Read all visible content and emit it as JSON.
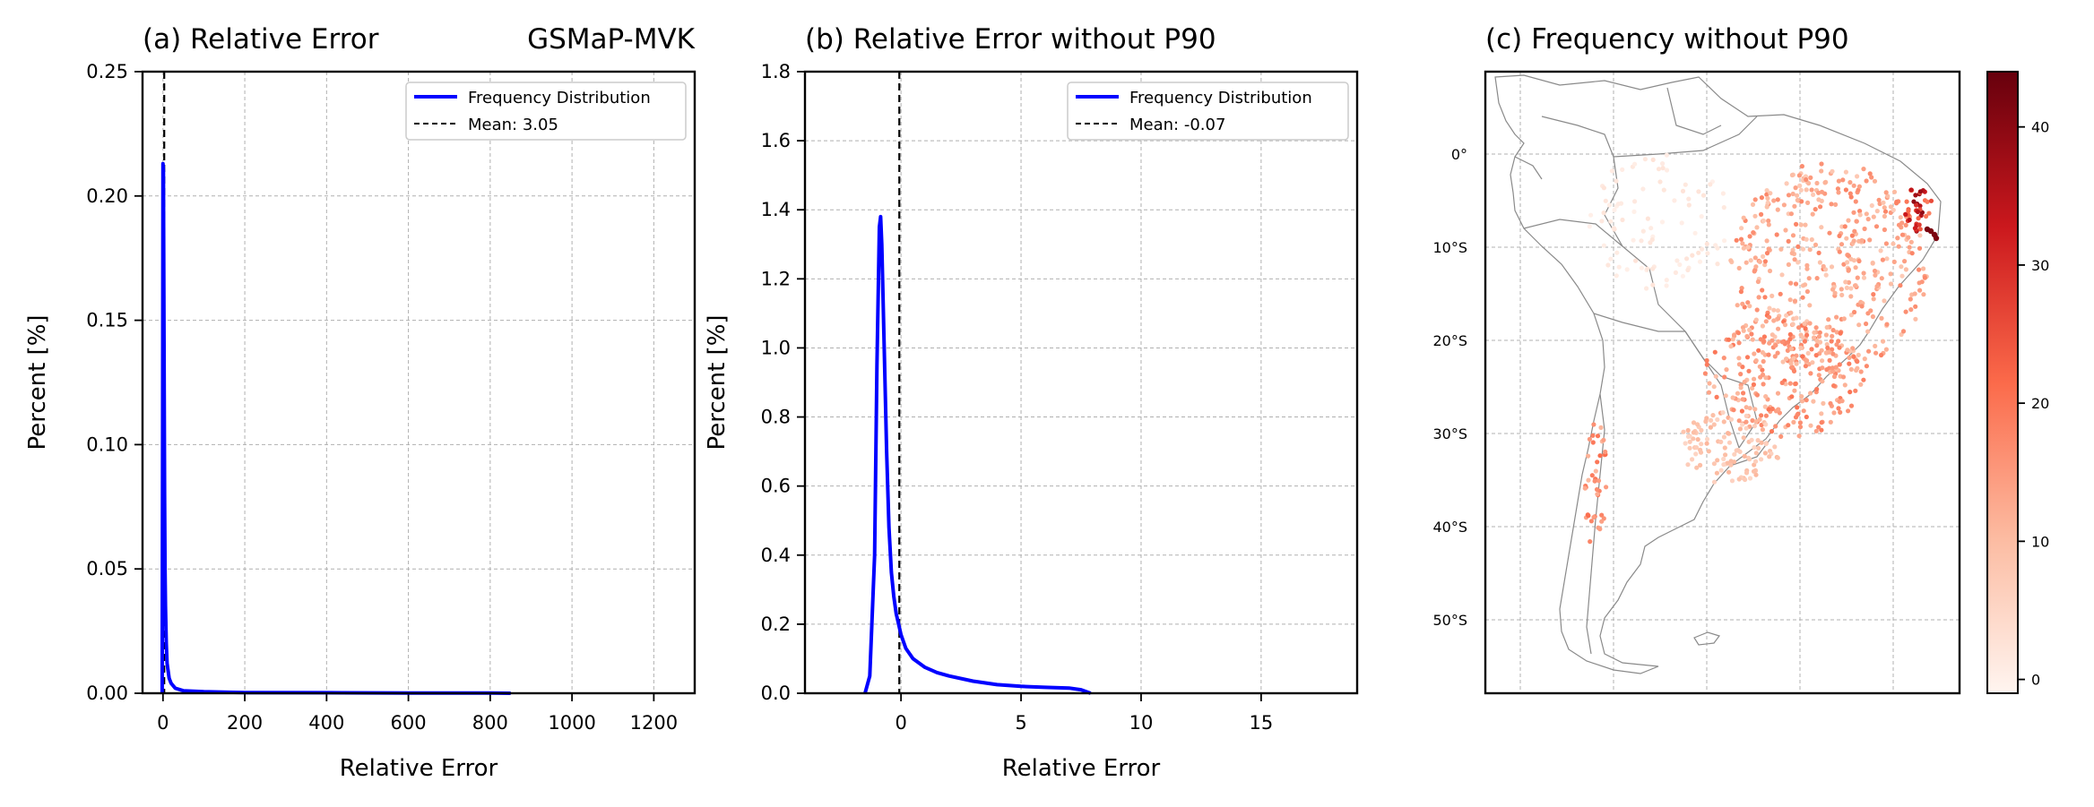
{
  "chart_data": [
    {
      "type": "line",
      "panel": "a",
      "title": "(a) Relative Error",
      "title_right": "GSMaP-MVK",
      "xlabel": "Relative Error",
      "ylabel": "Percent [%]",
      "xlim": [
        -50,
        1300
      ],
      "ylim": [
        0,
        0.25
      ],
      "xticks": [
        0,
        200,
        400,
        600,
        800,
        1000,
        1200
      ],
      "yticks": [
        0.0,
        0.05,
        0.1,
        0.15,
        0.2,
        0.25
      ],
      "ytick_labels": [
        "0.00",
        "0.05",
        "0.10",
        "0.15",
        "0.20",
        "0.25"
      ],
      "grid": true,
      "legend_position": "top-right",
      "series": [
        {
          "name": "Frequency Distribution",
          "color": "#0000ff",
          "x": [
            -2,
            -1,
            0,
            1,
            2,
            3,
            4,
            5,
            6,
            8,
            10,
            15,
            20,
            30,
            50,
            100,
            200,
            400,
            600,
            800,
            850
          ],
          "y": [
            0.0,
            0.1,
            0.213,
            0.21,
            0.17,
            0.12,
            0.08,
            0.05,
            0.035,
            0.02,
            0.012,
            0.006,
            0.004,
            0.002,
            0.001,
            0.0006,
            0.0003,
            0.0002,
            0.0001,
            0.0001,
            0.0
          ]
        },
        {
          "name": "Mean: 3.05",
          "color": "#000000",
          "style": "dashed",
          "vline": 3.05
        }
      ]
    },
    {
      "type": "line",
      "panel": "b",
      "title": "(b) Relative Error without P90",
      "xlabel": "Relative Error",
      "ylabel": "Percent [%]",
      "xlim": [
        -4,
        19
      ],
      "ylim": [
        0,
        1.8
      ],
      "xticks": [
        0,
        5,
        10,
        15
      ],
      "yticks": [
        0.0,
        0.2,
        0.4,
        0.6,
        0.8,
        1.0,
        1.2,
        1.4,
        1.6,
        1.8
      ],
      "ytick_labels": [
        "0.0",
        "0.2",
        "0.4",
        "0.6",
        "0.8",
        "1.0",
        "1.2",
        "1.4",
        "1.6",
        "1.8"
      ],
      "grid": true,
      "legend_position": "top-right",
      "series": [
        {
          "name": "Frequency Distribution",
          "color": "#0000ff",
          "x": [
            -1.5,
            -1.3,
            -1.1,
            -1.0,
            -0.9,
            -0.85,
            -0.8,
            -0.7,
            -0.6,
            -0.5,
            -0.4,
            -0.3,
            -0.2,
            -0.1,
            0,
            0.2,
            0.5,
            1,
            1.5,
            2,
            3,
            4,
            5,
            6,
            7,
            7.5,
            7.9
          ],
          "y": [
            0.0,
            0.05,
            0.4,
            0.95,
            1.35,
            1.38,
            1.3,
            1.0,
            0.7,
            0.48,
            0.35,
            0.28,
            0.23,
            0.2,
            0.17,
            0.13,
            0.1,
            0.075,
            0.06,
            0.05,
            0.035,
            0.025,
            0.02,
            0.017,
            0.015,
            0.01,
            0.0
          ]
        },
        {
          "name": "Mean: -0.07",
          "color": "#000000",
          "style": "dashed",
          "vline": -0.07
        }
      ]
    },
    {
      "type": "map",
      "panel": "c",
      "title": "(c) Frequency without P90",
      "lat_ticks": [
        "0°",
        "10°S",
        "20°S",
        "30°S",
        "40°S",
        "50°S"
      ],
      "colorbar": {
        "cmap": "Reds",
        "range": [
          -1,
          44
        ],
        "ticks": [
          0,
          10,
          20,
          30,
          40
        ],
        "colors": [
          "#fff5f0",
          "#fcbba1",
          "#fb6a4a",
          "#cb181d",
          "#67000d"
        ]
      }
    }
  ]
}
